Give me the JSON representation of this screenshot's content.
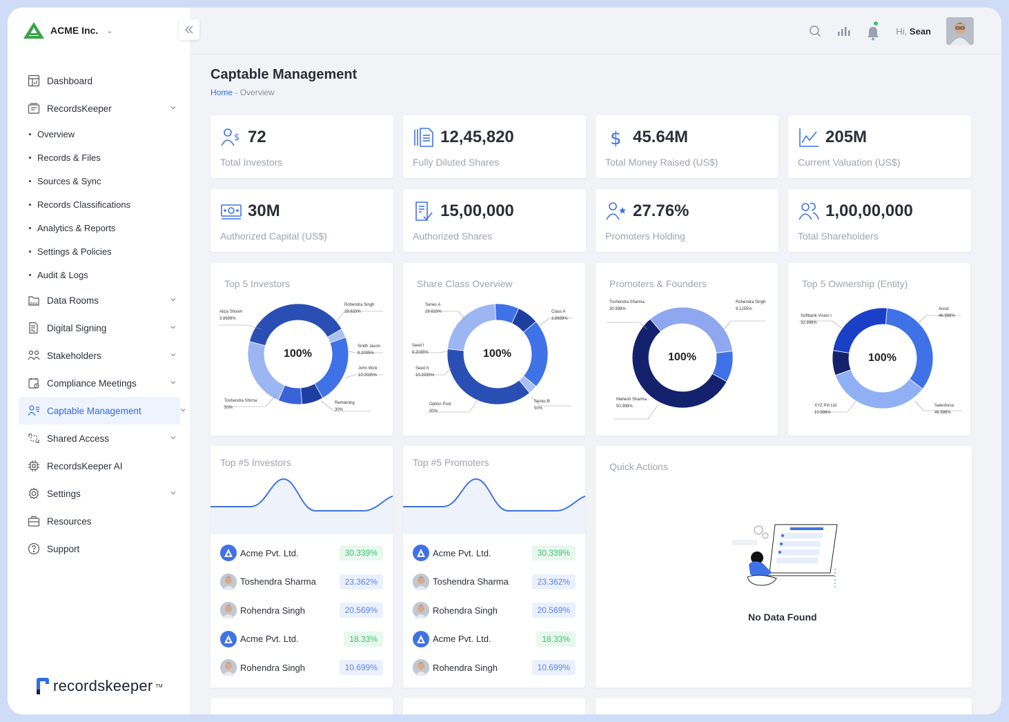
{
  "company": {
    "name": "ACME Inc."
  },
  "header": {
    "greeting": "Hi,",
    "user_name": "Sean"
  },
  "sidebar": {
    "items": [
      {
        "label": "Dashboard",
        "icon": "dashboard-icon",
        "expandable": false
      },
      {
        "label": "RecordsKeeper",
        "icon": "records-icon",
        "expandable": true
      },
      {
        "label": "Data Rooms",
        "icon": "data-rooms-icon",
        "expandable": true
      },
      {
        "label": "Digital Signing",
        "icon": "signing-icon",
        "expandable": true
      },
      {
        "label": "Stakeholders",
        "icon": "stakeholders-icon",
        "expandable": true
      },
      {
        "label": "Compliance Meetings",
        "icon": "calendar-icon",
        "expandable": true
      },
      {
        "label": "Captable Management",
        "icon": "captable-icon",
        "expandable": true,
        "active": true
      },
      {
        "label": "Shared Access",
        "icon": "share-icon",
        "expandable": true
      },
      {
        "label": "RecordsKeeper AI",
        "icon": "ai-chip-icon",
        "expandable": false
      },
      {
        "label": "Settings",
        "icon": "settings-icon",
        "expandable": true
      },
      {
        "label": "Resources",
        "icon": "briefcase-icon",
        "expandable": false
      },
      {
        "label": "Support",
        "icon": "help-icon",
        "expandable": false
      }
    ],
    "subitems": [
      "Overview",
      "Records & Files",
      "Sources & Sync",
      "Records Classifications",
      "Analytics & Reports",
      "Settings & Policies",
      "Audit & Logs"
    ],
    "footer_logo": "recordskeeper",
    "footer_tm": "TM"
  },
  "page": {
    "title": "Captable Management",
    "breadcrumb_home": "Home",
    "breadcrumb_sep": " - ",
    "breadcrumb_current": "Overview"
  },
  "stats": [
    {
      "value": "72",
      "label": "Total Investors",
      "icon": "investors-dollar-icon"
    },
    {
      "value": "12,45,820",
      "label": "Fully Diluted Shares",
      "icon": "documents-icon"
    },
    {
      "value": "45.64M",
      "label": "Total Money Raised (US$)",
      "icon": "dollar-icon"
    },
    {
      "value": "205M",
      "label": "Current Valuation (US$)",
      "icon": "line-chart-icon"
    },
    {
      "value": "30M",
      "label": "Authorized Capital (US$)",
      "icon": "banknote-icon"
    },
    {
      "value": "15,00,000",
      "label": "Authorized Shares",
      "icon": "checked-doc-icon"
    },
    {
      "value": "27.76%",
      "label": "Promoters Holding",
      "icon": "user-star-icon"
    },
    {
      "value": "1,00,00,000",
      "label": "Total Shareholders",
      "icon": "users-icon"
    }
  ],
  "chart_data": [
    {
      "type": "pie",
      "title": "Top 5 Investors",
      "center_label": "100%",
      "slices": [
        {
          "name": "Aliza Shown",
          "label": "3.8699%",
          "value": 3.8699,
          "color": "#a9c0f5"
        },
        {
          "name": "Rohendra Singh",
          "label": "29.633%",
          "value": 29.633,
          "color": "#3f72e6"
        },
        {
          "name": "Smith Jason",
          "label": "9.2035%",
          "value": 9.2035,
          "color": "#1e3fa0"
        },
        {
          "name": "John Wick",
          "label": "10.2035%",
          "value": 10.2035,
          "color": "#3a63d8"
        },
        {
          "name": "Remaining",
          "label": "30%",
          "value": 30,
          "color": "#9bb6f2"
        },
        {
          "name": "Toshendra Shrma",
          "label": "50%",
          "value": 50,
          "color": "#2a4fb4"
        }
      ]
    },
    {
      "type": "pie",
      "title": "Share Class Overview",
      "center_label": "100%",
      "slices": [
        {
          "name": "Class A",
          "label": "3.8699%",
          "value": 3.8699,
          "color": "#a9c0f5"
        },
        {
          "name": "Series B",
          "label": "50%",
          "value": 50,
          "color": "#2a4fb4"
        },
        {
          "name": "Option Pool",
          "label": "30%",
          "value": 30,
          "color": "#9bb6f2"
        },
        {
          "name": "Seed II",
          "label": "10.2035%",
          "value": 10.2035,
          "color": "#3f72e6"
        },
        {
          "name": "Seed I",
          "label": "9.2035%",
          "value": 9.2035,
          "color": "#1e3fa0"
        },
        {
          "name": "Series A",
          "label": "29.633%",
          "value": 29.633,
          "color": "#3f72e6"
        }
      ]
    },
    {
      "type": "pie",
      "title": "Promoters & Founders",
      "center_label": "100%",
      "slices": [
        {
          "name": "Toshendra Sharma",
          "label": "30.998%",
          "value": 30.998,
          "color": "#8ea7ee"
        },
        {
          "name": "Rohendra Singh",
          "label": "9.1255%",
          "value": 9.1255,
          "color": "#3f72e6"
        },
        {
          "name": "Mahesh Sharma",
          "label": "50.998%",
          "value": 50.998,
          "color": "#14226e"
        }
      ]
    },
    {
      "type": "pie",
      "title": "Top 5 Ownership (Entity)",
      "center_label": "100%",
      "slices": [
        {
          "name": "Accel",
          "label": "46.998%",
          "value": 46.998,
          "color": "#3f72e6"
        },
        {
          "name": "Salesforce",
          "label": "46.998%",
          "value": 46.998,
          "color": "#8fb0f5"
        },
        {
          "name": "XYZ Pvt Ltd",
          "label": "10.998%",
          "value": 10.998,
          "color": "#14226e"
        },
        {
          "name": "Softbank Vision I",
          "label": "32.998%",
          "value": 32.998,
          "color": "#1a40c8"
        }
      ]
    }
  ],
  "lists": [
    {
      "title": "Top #5 Investors",
      "rows": [
        {
          "name": "Acme Pvt. Ltd.",
          "value": "30.339%",
          "tone": "green",
          "avatar": "company-logo-icon"
        },
        {
          "name": "Toshendra Sharma",
          "value": "23.362%",
          "tone": "blue",
          "avatar": "person-avatar"
        },
        {
          "name": "Rohendra Singh",
          "value": "20.569%",
          "tone": "blue",
          "avatar": "person-avatar"
        },
        {
          "name": "Acme Pvt. Ltd.",
          "value": "18.33%",
          "tone": "green",
          "avatar": "company-logo-icon"
        },
        {
          "name": "Rohendra Singh",
          "value": "10.699%",
          "tone": "blue",
          "avatar": "person-avatar"
        }
      ]
    },
    {
      "title": "Top #5 Promoters",
      "rows": [
        {
          "name": "Acme Pvt. Ltd.",
          "value": "30.339%",
          "tone": "green",
          "avatar": "company-logo-icon"
        },
        {
          "name": "Toshendra Sharma",
          "value": "23.362%",
          "tone": "blue",
          "avatar": "person-avatar"
        },
        {
          "name": "Rohendra Singh",
          "value": "20.569%",
          "tone": "blue",
          "avatar": "person-avatar"
        },
        {
          "name": "Acme Pvt. Ltd.",
          "value": "18.33%",
          "tone": "green",
          "avatar": "company-logo-icon"
        },
        {
          "name": "Rohendra Singh",
          "value": "10.699%",
          "tone": "blue",
          "avatar": "person-avatar"
        }
      ]
    }
  ],
  "quick_actions": {
    "title": "Quick Actions",
    "empty_text": "No Data Found"
  },
  "colors": {
    "accent": "#2f6ce6",
    "green": "#3fbf72",
    "page_bg": "#f2f3f7"
  }
}
